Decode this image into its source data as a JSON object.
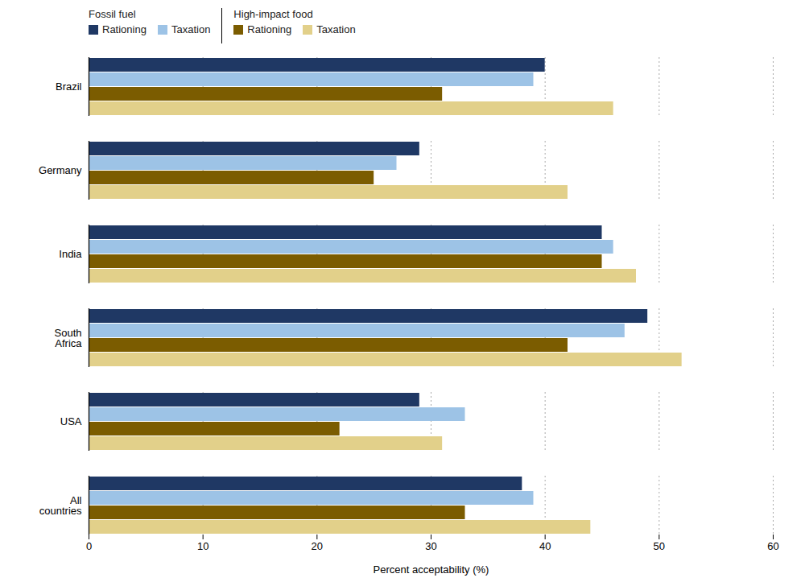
{
  "chart_data": {
    "type": "bar",
    "orientation": "horizontal",
    "categories": [
      "Brazil",
      "Germany",
      "India",
      "South\nAfrica",
      "USA",
      "All\ncountries"
    ],
    "series": [
      {
        "name": "Rationing",
        "group": "Fossil fuel",
        "color": "#1F3864",
        "values": [
          40,
          29,
          45,
          49,
          29,
          38
        ]
      },
      {
        "name": "Taxation",
        "group": "Fossil fuel",
        "color": "#9DC3E6",
        "values": [
          39,
          27,
          46,
          47,
          33,
          39
        ]
      },
      {
        "name": "Rationing",
        "group": "High-impact food",
        "color": "#7B5C00",
        "values": [
          31,
          25,
          45,
          42,
          22,
          33
        ]
      },
      {
        "name": "Taxation",
        "group": "High-impact food",
        "color": "#E2D08A",
        "values": [
          46,
          42,
          48,
          52,
          31,
          44
        ]
      }
    ],
    "xlabel": "Percent acceptability (%)",
    "xlim": [
      0,
      60
    ],
    "xticks": [
      0,
      10,
      20,
      30,
      40,
      50,
      60
    ],
    "grid": true,
    "legend": "upper left"
  }
}
